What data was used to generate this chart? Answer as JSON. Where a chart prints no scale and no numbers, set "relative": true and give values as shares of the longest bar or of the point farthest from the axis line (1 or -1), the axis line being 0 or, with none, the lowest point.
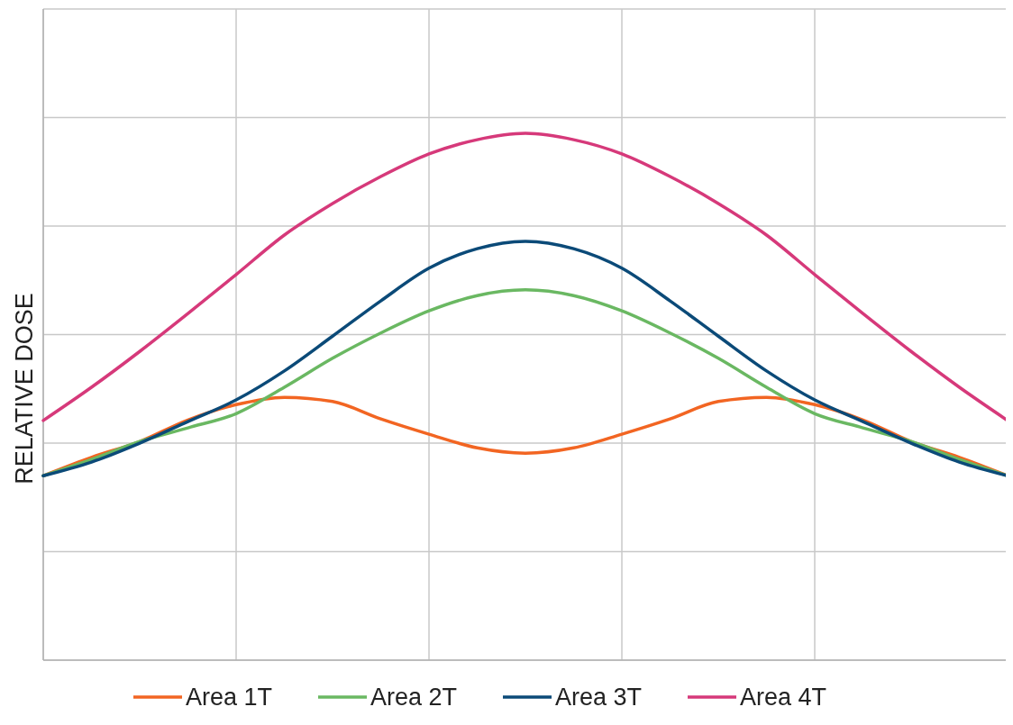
{
  "chart_data": {
    "type": "line",
    "ylabel": "RELATIVE DOSE",
    "relative": true,
    "grid": true,
    "legend": "bottom",
    "line_style": "solid",
    "categories": [
      null,
      null,
      null,
      null,
      null,
      null,
      null,
      null,
      null,
      null,
      null,
      null,
      null,
      null,
      null,
      null,
      null,
      null,
      null,
      null,
      null
    ],
    "series": [
      {
        "name": "Area 1T",
        "color": "#f26522",
        "values": [
          0.35,
          0.385,
          0.415,
          0.456,
          0.485,
          0.499,
          0.491,
          0.458,
          0.429,
          0.403,
          0.393,
          0.403,
          0.429,
          0.458,
          0.491,
          0.499,
          0.485,
          0.456,
          0.415,
          0.385,
          0.35
        ]
      },
      {
        "name": "Area 2T",
        "color": "#6ab862",
        "values": [
          0.35,
          0.381,
          0.415,
          0.441,
          0.468,
          0.518,
          0.573,
          0.621,
          0.663,
          0.692,
          0.703,
          0.692,
          0.663,
          0.621,
          0.573,
          0.518,
          0.468,
          0.441,
          0.415,
          0.381,
          0.35
        ]
      },
      {
        "name": "Area 3T",
        "color": "#0b4a78",
        "values": [
          0.35,
          0.376,
          0.412,
          0.453,
          0.494,
          0.549,
          0.615,
          0.682,
          0.744,
          0.781,
          0.795,
          0.781,
          0.744,
          0.682,
          0.615,
          0.549,
          0.494,
          0.453,
          0.412,
          0.376,
          0.35
        ]
      },
      {
        "name": "Area 4T",
        "color": "#d6397a",
        "values": [
          0.455,
          0.518,
          0.586,
          0.658,
          0.732,
          0.807,
          0.867,
          0.918,
          0.961,
          0.988,
          1.0,
          0.988,
          0.961,
          0.918,
          0.867,
          0.807,
          0.732,
          0.658,
          0.586,
          0.518,
          0.455
        ]
      }
    ]
  }
}
